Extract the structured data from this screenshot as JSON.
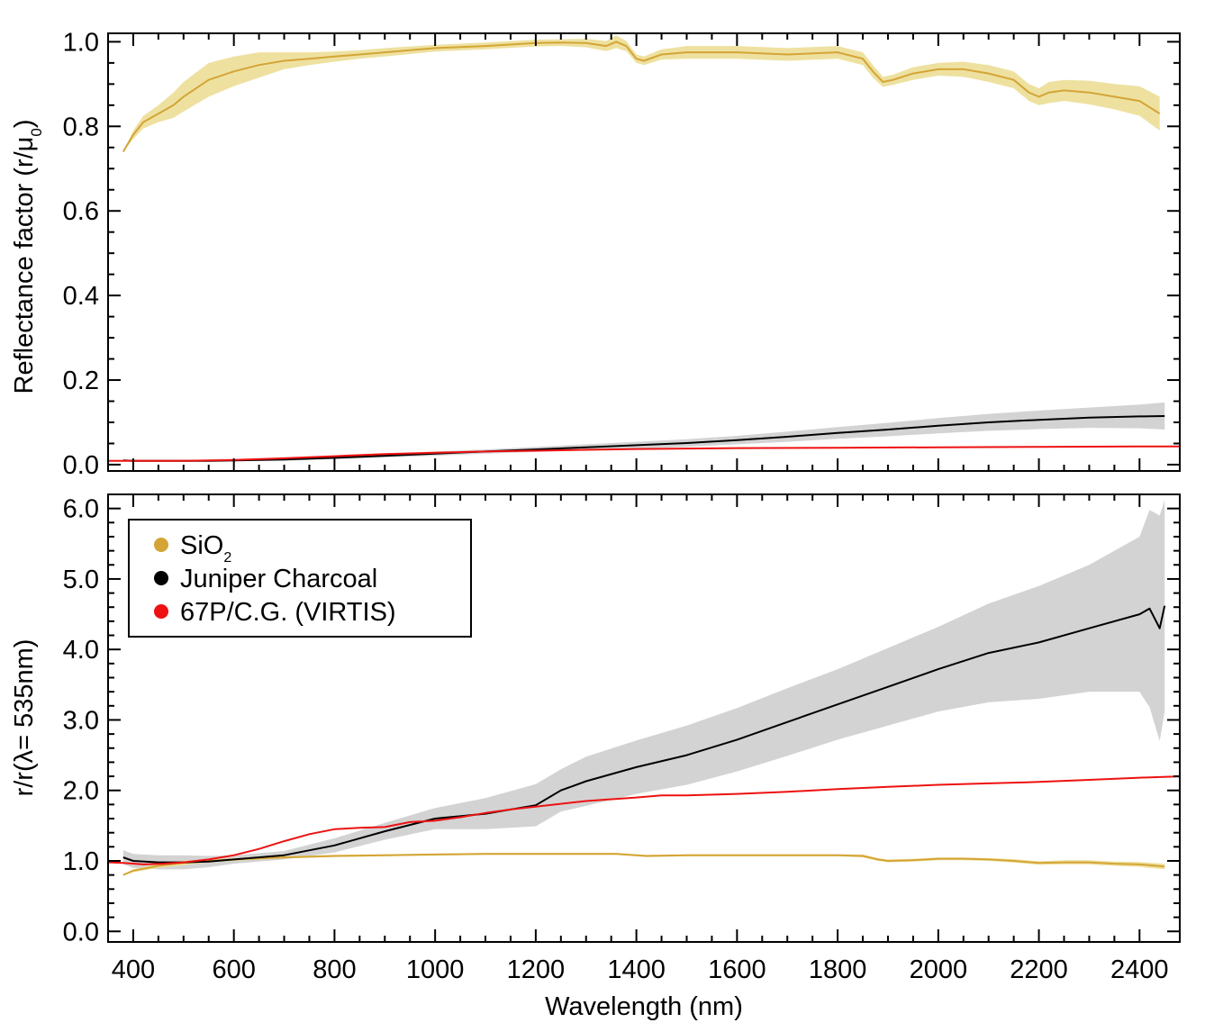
{
  "chart_data": [
    {
      "panel": "top",
      "type": "line",
      "ylabel": "Reflectance factor (r/μ0)",
      "xlabel": "",
      "xlim": [
        350,
        2480
      ],
      "ylim": [
        -0.015,
        1.02
      ],
      "xticks": [
        400,
        600,
        800,
        1000,
        1200,
        1400,
        1600,
        1800,
        2000,
        2200,
        2400
      ],
      "yticks": [
        0.0,
        0.2,
        0.4,
        0.6,
        0.8,
        1.0
      ],
      "ytick_labels": [
        "0.0",
        "0.2",
        "0.4",
        "0.6",
        "0.8",
        "1.0"
      ],
      "series": [
        {
          "name": "SiO2",
          "color": "#D4A536",
          "band_color": "#EEE1A0",
          "x": [
            380,
            400,
            420,
            450,
            480,
            500,
            550,
            600,
            650,
            700,
            750,
            800,
            850,
            900,
            1000,
            1100,
            1200,
            1250,
            1300,
            1340,
            1360,
            1380,
            1400,
            1415,
            1450,
            1500,
            1600,
            1700,
            1800,
            1850,
            1870,
            1890,
            1910,
            1950,
            2000,
            2050,
            2100,
            2150,
            2180,
            2200,
            2220,
            2250,
            2300,
            2350,
            2400,
            2440
          ],
          "y": [
            0.74,
            0.78,
            0.81,
            0.83,
            0.85,
            0.87,
            0.91,
            0.93,
            0.945,
            0.955,
            0.96,
            0.965,
            0.97,
            0.975,
            0.985,
            0.99,
            0.997,
            0.998,
            0.997,
            0.99,
            1.0,
            0.99,
            0.96,
            0.955,
            0.97,
            0.975,
            0.975,
            0.97,
            0.975,
            0.96,
            0.93,
            0.905,
            0.91,
            0.925,
            0.935,
            0.935,
            0.925,
            0.91,
            0.88,
            0.87,
            0.88,
            0.885,
            0.88,
            0.87,
            0.86,
            0.83
          ],
          "err": [
            0.0,
            0.01,
            0.015,
            0.02,
            0.03,
            0.035,
            0.04,
            0.035,
            0.03,
            0.02,
            0.015,
            0.012,
            0.01,
            0.01,
            0.008,
            0.008,
            0.008,
            0.008,
            0.01,
            0.012,
            0.015,
            0.012,
            0.01,
            0.01,
            0.012,
            0.015,
            0.015,
            0.015,
            0.015,
            0.015,
            0.015,
            0.012,
            0.012,
            0.015,
            0.015,
            0.018,
            0.02,
            0.02,
            0.02,
            0.02,
            0.025,
            0.025,
            0.028,
            0.03,
            0.035,
            0.04
          ]
        },
        {
          "name": "Juniper Charcoal",
          "color": "#000000",
          "band_color": "#D3D3D3",
          "x": [
            380,
            400,
            450,
            500,
            550,
            600,
            700,
            800,
            900,
            1000,
            1100,
            1200,
            1300,
            1400,
            1500,
            1600,
            1700,
            1800,
            1900,
            2000,
            2100,
            2200,
            2300,
            2400,
            2450
          ],
          "y": [
            0.01,
            0.009,
            0.009,
            0.009,
            0.009,
            0.01,
            0.012,
            0.016,
            0.021,
            0.026,
            0.031,
            0.036,
            0.041,
            0.046,
            0.051,
            0.058,
            0.066,
            0.075,
            0.083,
            0.092,
            0.1,
            0.106,
            0.111,
            0.114,
            0.115
          ],
          "err": [
            0.002,
            0.002,
            0.002,
            0.002,
            0.002,
            0.002,
            0.003,
            0.003,
            0.004,
            0.005,
            0.005,
            0.006,
            0.007,
            0.008,
            0.009,
            0.01,
            0.012,
            0.014,
            0.016,
            0.018,
            0.02,
            0.022,
            0.024,
            0.028,
            0.032
          ]
        },
        {
          "name": "67P/C.G. (VIRTIS)",
          "color": "#EE1111",
          "x": [
            350,
            400,
            500,
            600,
            700,
            800,
            900,
            1000,
            1100,
            1200,
            1300,
            1400,
            1500,
            1600,
            1800,
            2000,
            2200,
            2400,
            2480
          ],
          "y": [
            0.009,
            0.009,
            0.009,
            0.011,
            0.015,
            0.02,
            0.025,
            0.028,
            0.031,
            0.033,
            0.035,
            0.037,
            0.038,
            0.039,
            0.04,
            0.041,
            0.042,
            0.043,
            0.043
          ]
        }
      ]
    },
    {
      "panel": "bottom",
      "type": "line",
      "ylabel": "r/r(λ= 535nm)",
      "xlabel": "Wavelength (nm)",
      "xlim": [
        350,
        2480
      ],
      "ylim": [
        -0.15,
        6.2
      ],
      "xticks": [
        400,
        600,
        800,
        1000,
        1200,
        1400,
        1600,
        1800,
        2000,
        2200,
        2400
      ],
      "yticks": [
        0.0,
        1.0,
        2.0,
        3.0,
        4.0,
        5.0,
        6.0
      ],
      "ytick_labels": [
        "0.0",
        "1.0",
        "2.0",
        "3.0",
        "4.0",
        "5.0",
        "6.0"
      ],
      "legend": {
        "placement": "top-left",
        "entries": [
          {
            "label": "SiO",
            "sub": "2",
            "color": "#D4A536"
          },
          {
            "label": "Juniper Charcoal",
            "sub": "",
            "color": "#000000"
          },
          {
            "label": "67P/C.G. (VIRTIS)",
            "sub": "",
            "color": "#EE1111"
          }
        ]
      },
      "series": [
        {
          "name": "SiO2",
          "color": "#D4A536",
          "band_color": "#EEE1A0",
          "x": [
            380,
            400,
            450,
            500,
            550,
            600,
            700,
            800,
            900,
            1000,
            1100,
            1200,
            1300,
            1360,
            1400,
            1420,
            1500,
            1600,
            1700,
            1800,
            1850,
            1880,
            1900,
            1950,
            2000,
            2050,
            2100,
            2150,
            2200,
            2250,
            2300,
            2350,
            2400,
            2450
          ],
          "y": [
            0.8,
            0.86,
            0.93,
            0.97,
            1.0,
            1.02,
            1.05,
            1.07,
            1.08,
            1.09,
            1.1,
            1.1,
            1.1,
            1.1,
            1.08,
            1.07,
            1.08,
            1.08,
            1.08,
            1.08,
            1.07,
            1.02,
            1.0,
            1.01,
            1.03,
            1.03,
            1.02,
            1.0,
            0.97,
            0.98,
            0.98,
            0.96,
            0.95,
            0.92
          ],
          "err": [
            0.0,
            0.02,
            0.03,
            0.03,
            0.02,
            0.02,
            0.015,
            0.015,
            0.015,
            0.015,
            0.015,
            0.015,
            0.015,
            0.015,
            0.015,
            0.015,
            0.015,
            0.015,
            0.015,
            0.015,
            0.02,
            0.02,
            0.02,
            0.02,
            0.02,
            0.02,
            0.02,
            0.025,
            0.025,
            0.03,
            0.03,
            0.03,
            0.035,
            0.04
          ]
        },
        {
          "name": "Juniper Charcoal",
          "color": "#000000",
          "band_color": "#D3D3D3",
          "x": [
            380,
            400,
            450,
            500,
            550,
            600,
            700,
            800,
            900,
            1000,
            1100,
            1200,
            1250,
            1300,
            1400,
            1500,
            1600,
            1700,
            1800,
            1900,
            2000,
            2100,
            2200,
            2300,
            2400,
            2420,
            2440,
            2450
          ],
          "y": [
            1.05,
            1.0,
            0.98,
            0.98,
            0.99,
            1.02,
            1.08,
            1.22,
            1.42,
            1.6,
            1.67,
            1.79,
            2.0,
            2.13,
            2.33,
            2.5,
            2.72,
            2.97,
            3.22,
            3.47,
            3.72,
            3.95,
            4.1,
            4.3,
            4.5,
            4.58,
            4.3,
            4.62
          ],
          "err": [
            0.1,
            0.1,
            0.1,
            0.1,
            0.08,
            0.06,
            0.06,
            0.1,
            0.12,
            0.15,
            0.22,
            0.3,
            0.3,
            0.35,
            0.38,
            0.42,
            0.45,
            0.48,
            0.5,
            0.55,
            0.6,
            0.7,
            0.8,
            0.9,
            1.1,
            1.4,
            1.6,
            1.5
          ]
        },
        {
          "name": "67P/C.G. (VIRTIS)",
          "color": "#EE1111",
          "x": [
            350,
            380,
            420,
            460,
            500,
            550,
            600,
            650,
            700,
            750,
            800,
            850,
            900,
            950,
            1000,
            1050,
            1100,
            1150,
            1200,
            1300,
            1400,
            1450,
            1500,
            1600,
            1700,
            1800,
            1900,
            2000,
            2100,
            2200,
            2300,
            2400,
            2480
          ],
          "y": [
            0.98,
            0.97,
            0.95,
            0.96,
            0.98,
            1.02,
            1.08,
            1.17,
            1.28,
            1.38,
            1.45,
            1.47,
            1.48,
            1.55,
            1.57,
            1.62,
            1.68,
            1.73,
            1.77,
            1.85,
            1.9,
            1.93,
            1.93,
            1.95,
            1.98,
            2.02,
            2.05,
            2.08,
            2.1,
            2.12,
            2.15,
            2.18,
            2.2
          ]
        }
      ]
    }
  ]
}
